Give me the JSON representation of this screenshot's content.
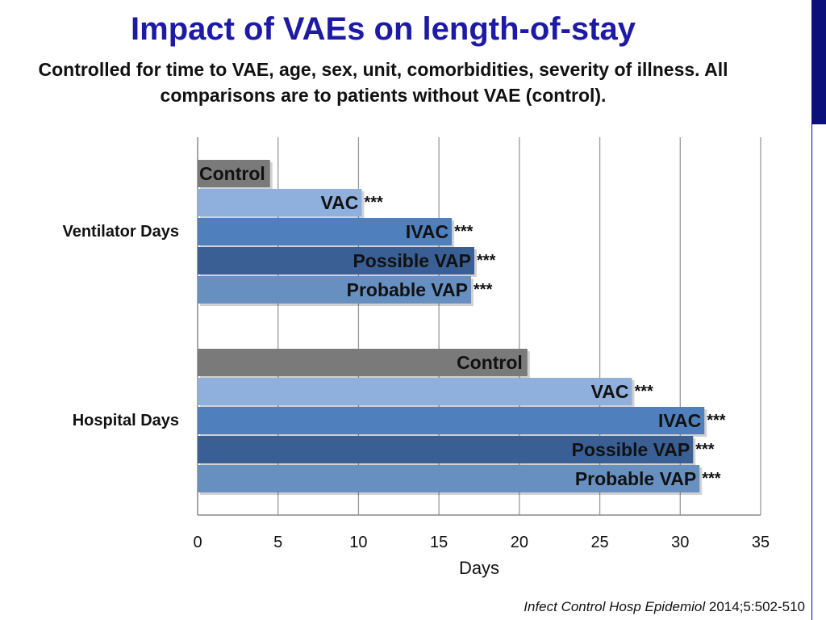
{
  "title": "Impact of VAEs on length-of-stay",
  "subtitle": "Controlled for time to VAE, age, sex, unit, comorbidities, severity of illness.  All comparisons are to patients without VAE (control).",
  "citation": {
    "journal": "Infect Control Hosp Epidemiol",
    "ref": "2014;5:502-510"
  },
  "chart_data": {
    "type": "bar",
    "orientation": "horizontal",
    "xlabel": "Days",
    "xlim": [
      0,
      35
    ],
    "xticks": [
      0,
      5,
      10,
      15,
      20,
      25,
      30,
      35
    ],
    "grid": true,
    "categories": [
      "Ventilator Days",
      "Hospital Days"
    ],
    "series": [
      {
        "name": "Control",
        "significance": "",
        "color": "#7a7a7a",
        "values": [
          4.5,
          20.5
        ]
      },
      {
        "name": "VAC",
        "significance": "***",
        "color": "#8fb0dc",
        "values": [
          10.2,
          27
        ]
      },
      {
        "name": "IVAC",
        "significance": "***",
        "color": "#4f80bd",
        "values": [
          15.8,
          31.5
        ]
      },
      {
        "name": "Possible VAP",
        "significance": "***",
        "color": "#395f94",
        "values": [
          17.2,
          30.8
        ]
      },
      {
        "name": "Probable VAP",
        "significance": "***",
        "color": "#6790c0",
        "values": [
          17,
          31.2
        ]
      }
    ]
  }
}
